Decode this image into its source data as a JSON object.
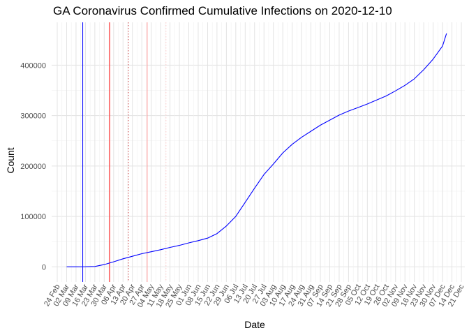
{
  "chart_data": {
    "type": "line",
    "title": "GA Coronavirus Confirmed Cumulative Infections on 2020-12-10",
    "xlabel": "Date",
    "ylabel": "Count",
    "xlim": [
      "2020-02-24",
      "2020-12-21"
    ],
    "ylim": [
      -30000,
      485000
    ],
    "grid": true,
    "legend": "none",
    "y_ticks": [
      0,
      100000,
      200000,
      300000,
      400000
    ],
    "x_ticks": [
      "2020-02-24",
      "2020-03-02",
      "2020-03-09",
      "2020-03-16",
      "2020-03-23",
      "2020-03-30",
      "2020-04-06",
      "2020-04-13",
      "2020-04-20",
      "2020-04-27",
      "2020-05-04",
      "2020-05-11",
      "2020-05-18",
      "2020-05-25",
      "2020-06-01",
      "2020-06-08",
      "2020-06-15",
      "2020-06-22",
      "2020-06-29",
      "2020-07-06",
      "2020-07-13",
      "2020-07-20",
      "2020-07-27",
      "2020-08-03",
      "2020-08-10",
      "2020-08-17",
      "2020-08-24",
      "2020-08-31",
      "2020-09-07",
      "2020-09-14",
      "2020-09-21",
      "2020-09-28",
      "2020-10-05",
      "2020-10-12",
      "2020-10-19",
      "2020-10-26",
      "2020-11-02",
      "2020-11-09",
      "2020-11-16",
      "2020-11-23",
      "2020-11-30",
      "2020-12-07",
      "2020-12-14",
      "2020-12-21"
    ],
    "x_tick_labels": [
      "24 Feb",
      "02 Mar",
      "09 Mar",
      "16 Mar",
      "23 Mar",
      "30 Mar",
      "06 Apr",
      "13 Apr",
      "20 Apr",
      "27 Apr",
      "04 May",
      "11 May",
      "18 May",
      "25 May",
      "01 Jun",
      "08 Jun",
      "15 Jun",
      "22 Jun",
      "29 Jun",
      "06 Jul",
      "13 Jul",
      "20 Jul",
      "27 Jul",
      "03 Aug",
      "10 Aug",
      "17 Aug",
      "24 Aug",
      "31 Aug",
      "07 Sep",
      "14 Sep",
      "21 Sep",
      "28 Sep",
      "05 Oct",
      "12 Oct",
      "19 Oct",
      "26 Oct",
      "02 Nov",
      "09 Nov",
      "16 Nov",
      "23 Nov",
      "30 Nov",
      "07 Dec",
      "14 Dec",
      "21 Dec"
    ],
    "reference_lines": [
      {
        "date": "2020-03-14",
        "color": "#0000ff",
        "style": "solid"
      },
      {
        "date": "2020-04-03",
        "color": "#ff0000",
        "style": "solid"
      },
      {
        "date": "2020-04-17",
        "color": "#cc4444",
        "style": "dotted"
      },
      {
        "date": "2020-05-01",
        "color": "#ff9999",
        "style": "solid"
      },
      {
        "date": "2020-05-15",
        "color": "#ffcccc",
        "style": "dotted"
      }
    ],
    "series": [
      {
        "color": "#0000ff",
        "x": [
          "2020-03-02",
          "2020-03-09",
          "2020-03-16",
          "2020-03-23",
          "2020-03-30",
          "2020-04-06",
          "2020-04-13",
          "2020-04-20",
          "2020-04-27",
          "2020-05-04",
          "2020-05-11",
          "2020-05-18",
          "2020-05-25",
          "2020-06-01",
          "2020-06-08",
          "2020-06-15",
          "2020-06-22",
          "2020-06-29",
          "2020-07-06",
          "2020-07-13",
          "2020-07-20",
          "2020-07-27",
          "2020-08-03",
          "2020-08-10",
          "2020-08-17",
          "2020-08-24",
          "2020-08-31",
          "2020-09-07",
          "2020-09-14",
          "2020-09-21",
          "2020-09-28",
          "2020-10-05",
          "2020-10-12",
          "2020-10-19",
          "2020-10-26",
          "2020-11-02",
          "2020-11-09",
          "2020-11-16",
          "2020-11-23",
          "2020-11-30",
          "2020-12-07",
          "2020-12-10"
        ],
        "y": [
          0,
          100,
          200,
          800,
          4500,
          10000,
          16000,
          21000,
          26000,
          30000,
          34000,
          38500,
          42500,
          47500,
          52000,
          57000,
          66000,
          81000,
          100000,
          128000,
          156000,
          183000,
          204000,
          226000,
          243000,
          257000,
          269000,
          281000,
          291000,
          301000,
          309000,
          316000,
          323000,
          331000,
          339000,
          349000,
          360000,
          373000,
          391000,
          412000,
          438000,
          463000
        ]
      }
    ]
  }
}
